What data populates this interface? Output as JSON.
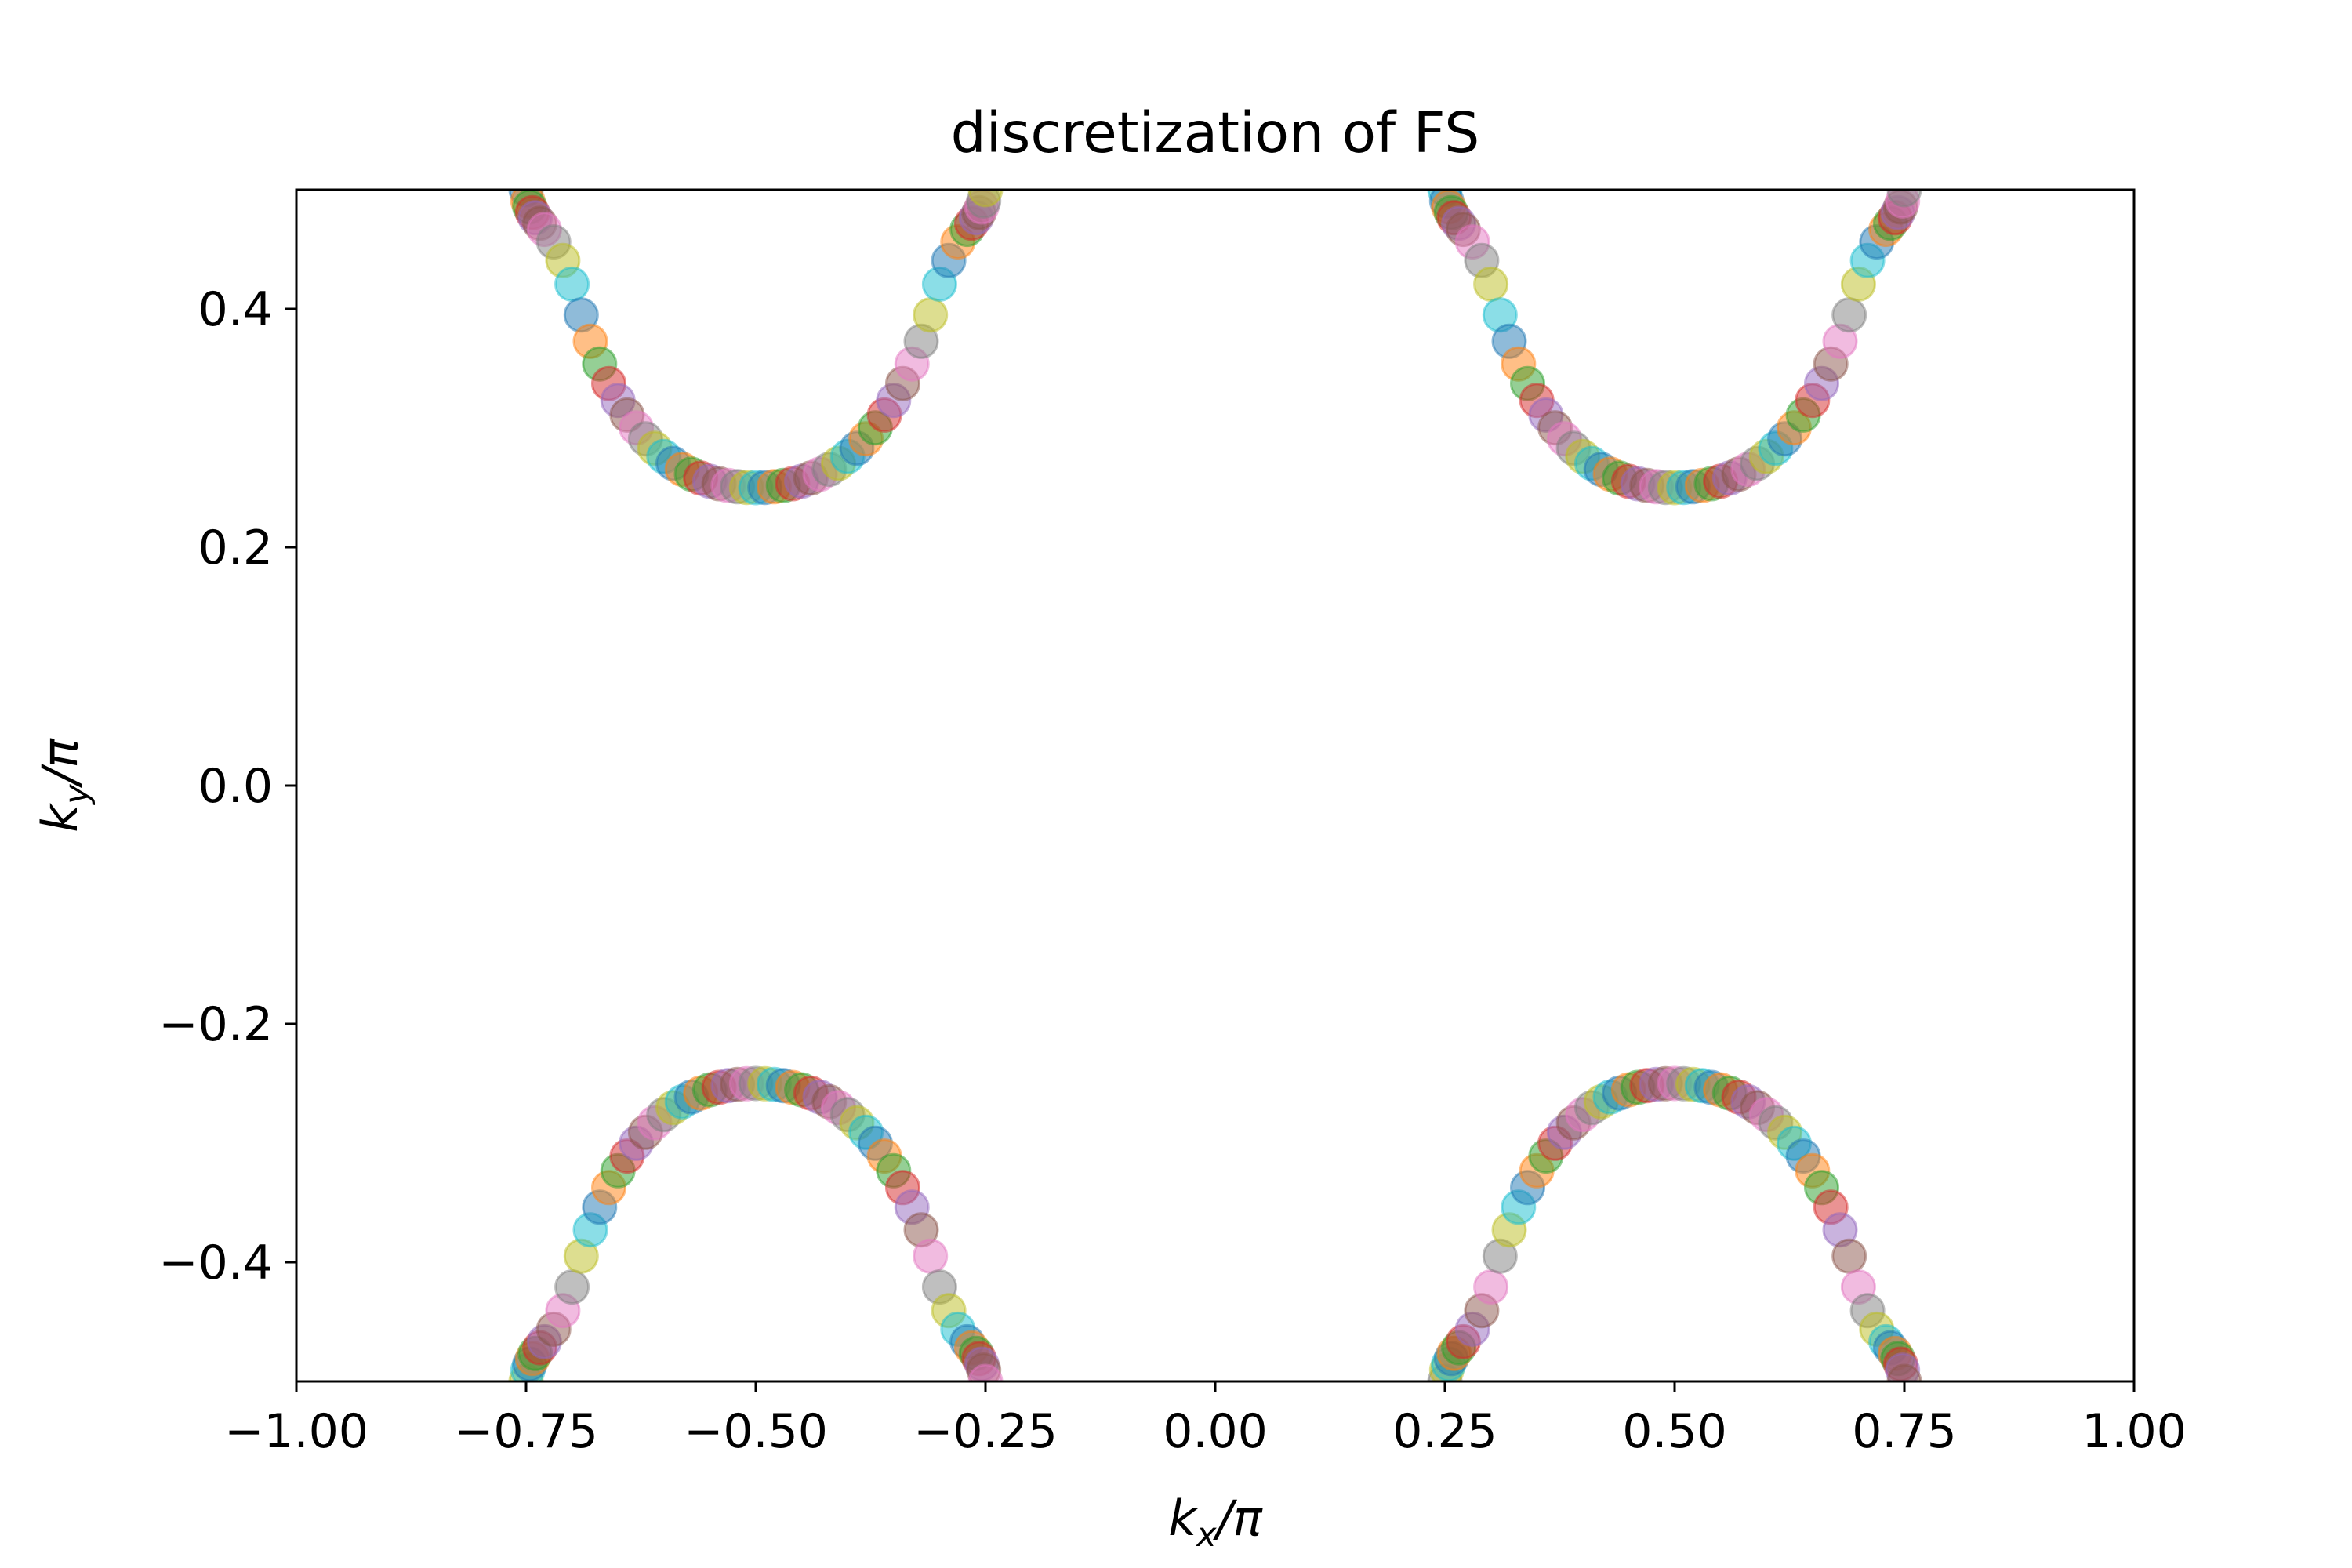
{
  "chart_data": {
    "type": "scatter",
    "title": "discretization of FS",
    "xlabel": {
      "main": "k",
      "sub": "x",
      "rest": "/π"
    },
    "ylabel": {
      "main": "k",
      "sub": "y",
      "rest": "/π"
    },
    "xlim": [
      -1.0,
      1.0
    ],
    "ylim": [
      -0.5,
      0.5
    ],
    "xticks": [
      -1.0,
      -0.75,
      -0.5,
      -0.25,
      0.0,
      0.25,
      0.5,
      0.75,
      1.0
    ],
    "xtick_labels": [
      "−1.00",
      "−0.75",
      "−0.50",
      "−0.25",
      "0.00",
      "0.25",
      "0.50",
      "0.75",
      "1.00"
    ],
    "yticks": [
      -0.4,
      -0.2,
      0.0,
      0.2,
      0.4
    ],
    "ytick_labels": [
      "−0.4",
      "−0.2",
      "0.0",
      "0.2",
      "0.4"
    ],
    "grid": false,
    "legend": "none",
    "marker_alpha": 0.5,
    "palette": [
      "#1f77b4",
      "#ff7f0e",
      "#2ca02c",
      "#d62728",
      "#9467bd",
      "#8c564b",
      "#e377c2",
      "#7f7f7f",
      "#bcbd22",
      "#17becf"
    ],
    "pockets": [
      {
        "center_x": -0.5,
        "center_y": 0.5,
        "sign_y": 1
      },
      {
        "center_x": 0.5,
        "center_y": 0.5,
        "sign_y": 1
      },
      {
        "center_x": -0.5,
        "center_y": -0.5,
        "sign_y": -1
      },
      {
        "center_x": 0.5,
        "center_y": -0.5,
        "sign_y": -1
      }
    ],
    "curve": {
      "half_width": 0.25,
      "x_offsets": [
        0.0,
        0.01,
        0.02,
        0.03,
        0.04,
        0.05,
        0.06,
        0.07,
        0.08,
        0.09,
        0.1,
        0.11,
        0.12,
        0.13,
        0.14,
        0.15,
        0.16,
        0.17,
        0.18,
        0.19,
        0.2,
        0.21,
        0.22,
        0.23,
        0.235,
        0.24,
        0.243,
        0.246,
        0.248,
        0.25
      ],
      "y_depth": [
        0.25,
        0.2502,
        0.2508,
        0.2518,
        0.2533,
        0.2553,
        0.258,
        0.2613,
        0.2654,
        0.2703,
        0.2761,
        0.283,
        0.291,
        0.3002,
        0.3109,
        0.3232,
        0.3374,
        0.3538,
        0.3728,
        0.3949,
        0.4208,
        0.4406,
        0.4562,
        0.4667,
        0.4718,
        0.4765,
        0.4808,
        0.4855,
        0.4905,
        0.5
      ]
    }
  }
}
